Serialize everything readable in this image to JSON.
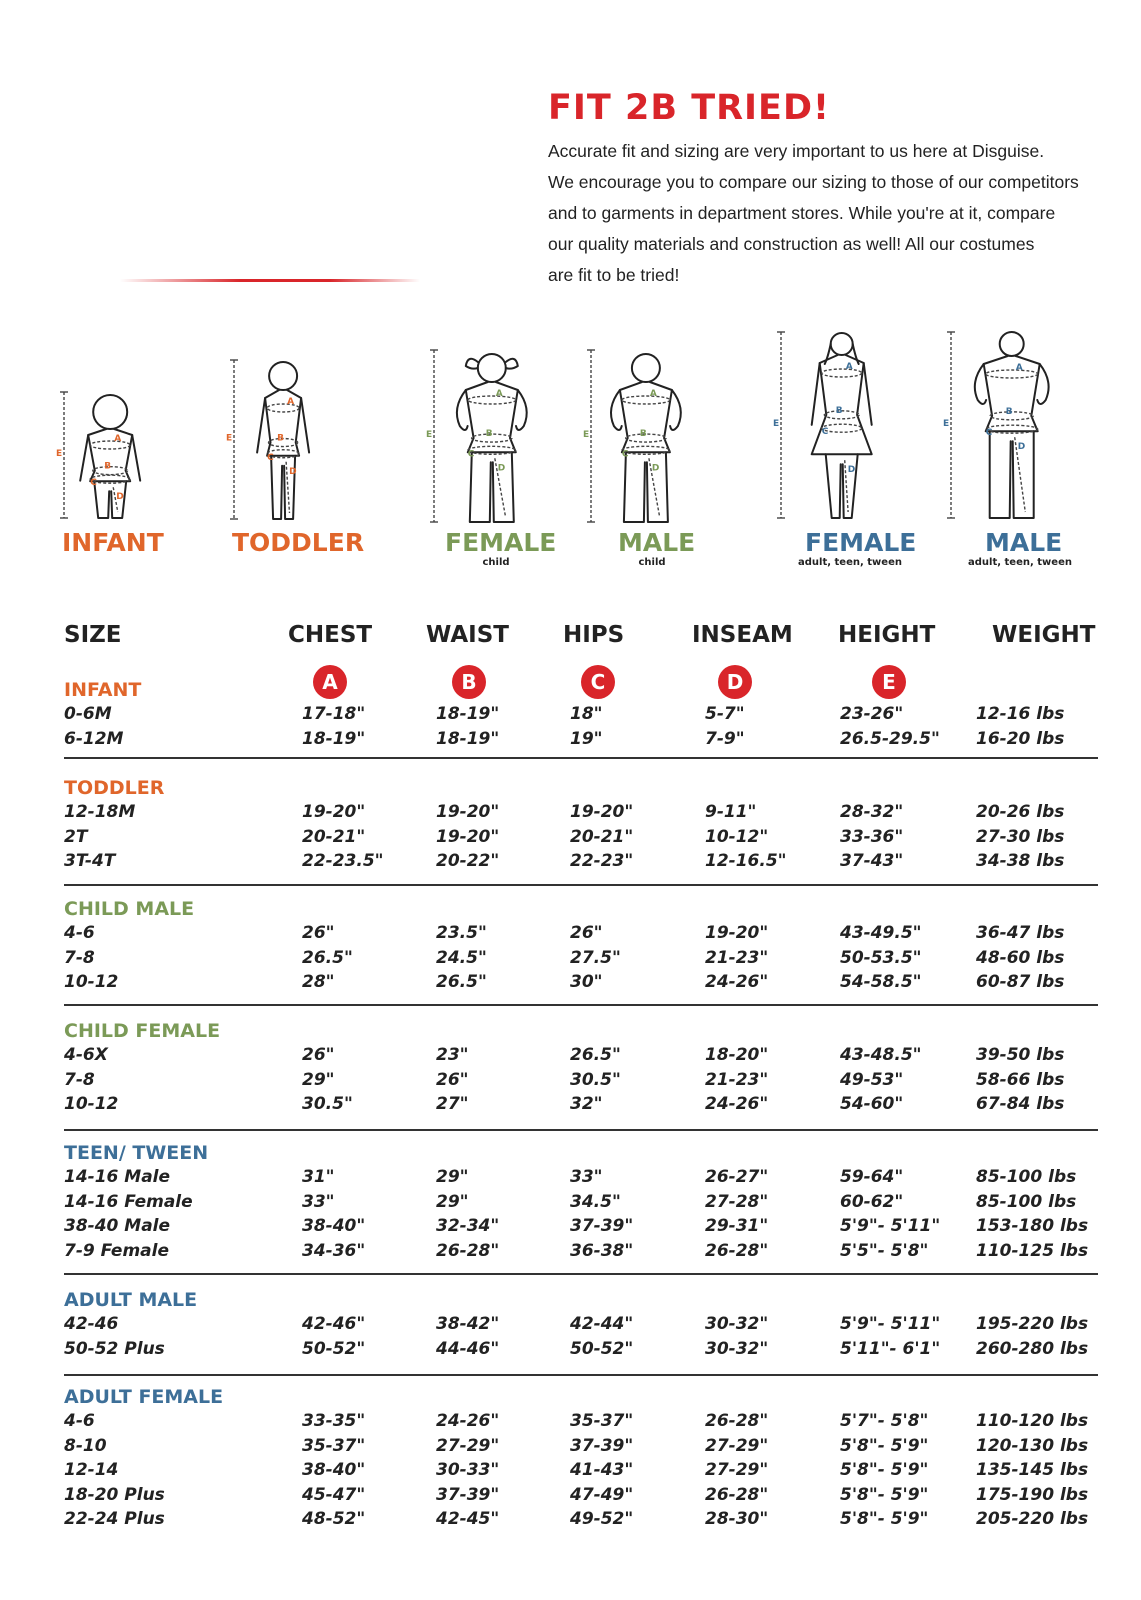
{
  "header": {
    "headline": "FIT 2B TRIED!",
    "intro_lines": [
      "Accurate fit and sizing are very important to us here at Disguise.",
      "We encourage you to compare our sizing to those of our competitors",
      "and to garments in department stores. While you're at it, compare",
      "our quality materials and construction as well! All our costumes",
      "are fit to be tried!"
    ]
  },
  "colors": {
    "headline_red": "#d9252a",
    "orange": "#e0662b",
    "green": "#7b9a57",
    "blue": "#3d6f98",
    "rule": "#333333"
  },
  "figures": [
    {
      "label": "INFANT",
      "sublabel": "",
      "color": "orange"
    },
    {
      "label": "TODDLER",
      "sublabel": "",
      "color": "orange"
    },
    {
      "label": "FEMALE",
      "sublabel": "child",
      "color": "green"
    },
    {
      "label": "MALE",
      "sublabel": "child",
      "color": "green"
    },
    {
      "label": "FEMALE",
      "sublabel": "adult, teen, tween",
      "color": "blue"
    },
    {
      "label": "MALE",
      "sublabel": "adult, teen, tween",
      "color": "blue"
    }
  ],
  "figure_markers": [
    "A",
    "B",
    "C",
    "D",
    "E"
  ],
  "table": {
    "columns": [
      "SIZE",
      "CHEST",
      "WAIST",
      "HIPS",
      "INSEAM",
      "HEIGHT",
      "WEIGHT"
    ],
    "badges": [
      "A",
      "B",
      "C",
      "D",
      "E"
    ],
    "sections": [
      {
        "title": "INFANT",
        "color": "orange",
        "rows": [
          [
            "0-6M",
            "17-18\"",
            "18-19\"",
            "18\"",
            "5-7\"",
            "23-26\"",
            "12-16 lbs"
          ],
          [
            "6-12M",
            "18-19\"",
            "18-19\"",
            "19\"",
            "7-9\"",
            "26.5-29.5\"",
            "16-20 lbs"
          ]
        ]
      },
      {
        "title": "TODDLER",
        "color": "orange",
        "rows": [
          [
            "12-18M",
            "19-20\"",
            "19-20\"",
            "19-20\"",
            "9-11\"",
            "28-32\"",
            "20-26 lbs"
          ],
          [
            "2T",
            "20-21\"",
            "19-20\"",
            "20-21\"",
            "10-12\"",
            "33-36\"",
            "27-30 lbs"
          ],
          [
            "3T-4T",
            "22-23.5\"",
            "20-22\"",
            "22-23\"",
            "12-16.5\"",
            "37-43\"",
            "34-38 lbs"
          ]
        ]
      },
      {
        "title": "CHILD MALE",
        "color": "green",
        "rows": [
          [
            "4-6",
            "26\"",
            "23.5\"",
            "26\"",
            "19-20\"",
            "43-49.5\"",
            "36-47 lbs"
          ],
          [
            "7-8",
            "26.5\"",
            "24.5\"",
            "27.5\"",
            "21-23\"",
            "50-53.5\"",
            "48-60 lbs"
          ],
          [
            "10-12",
            "28\"",
            "26.5\"",
            "30\"",
            "24-26\"",
            "54-58.5\"",
            "60-87 lbs"
          ]
        ]
      },
      {
        "title": "CHILD FEMALE",
        "color": "green",
        "rows": [
          [
            "4-6X",
            "26\"",
            "23\"",
            "26.5\"",
            "18-20\"",
            "43-48.5\"",
            "39-50 lbs"
          ],
          [
            "7-8",
            "29\"",
            "26\"",
            "30.5\"",
            "21-23\"",
            "49-53\"",
            "58-66 lbs"
          ],
          [
            "10-12",
            "30.5\"",
            "27\"",
            "32\"",
            "24-26\"",
            "54-60\"",
            "67-84 lbs"
          ]
        ]
      },
      {
        "title": "TEEN/ TWEEN",
        "color": "blue",
        "rows": [
          [
            "14-16 Male",
            "31\"",
            "29\"",
            "33\"",
            "26-27\"",
            "59-64\"",
            "85-100 lbs"
          ],
          [
            "14-16 Female",
            "33\"",
            "29\"",
            "34.5\"",
            "27-28\"",
            "60-62\"",
            "85-100 lbs"
          ],
          [
            "38-40 Male",
            "38-40\"",
            "32-34\"",
            "37-39\"",
            "29-31\"",
            "5'9\"- 5'11\"",
            "153-180 lbs"
          ],
          [
            "7-9 Female",
            "34-36\"",
            "26-28\"",
            "36-38\"",
            "26-28\"",
            "5'5\"- 5'8\"",
            "110-125 lbs"
          ]
        ]
      },
      {
        "title": "ADULT MALE",
        "color": "blue",
        "rows": [
          [
            "42-46",
            "42-46\"",
            "38-42\"",
            "42-44\"",
            "30-32\"",
            "5'9\"- 5'11\"",
            "195-220 lbs"
          ],
          [
            "50-52 Plus",
            "50-52\"",
            "44-46\"",
            "50-52\"",
            "30-32\"",
            "5'11\"- 6'1\"",
            "260-280 lbs"
          ]
        ]
      },
      {
        "title": "ADULT FEMALE",
        "color": "blue",
        "rows": [
          [
            "4-6",
            "33-35\"",
            "24-26\"",
            "35-37\"",
            "26-28\"",
            "5'7\"- 5'8\"",
            "110-120 lbs"
          ],
          [
            "8-10",
            "35-37\"",
            "27-29\"",
            "37-39\"",
            "27-29\"",
            "5'8\"- 5'9\"",
            "120-130 lbs"
          ],
          [
            "12-14",
            "38-40\"",
            "30-33\"",
            "41-43\"",
            "27-29\"",
            "5'8\"- 5'9\"",
            "135-145 lbs"
          ],
          [
            "18-20 Plus",
            "45-47\"",
            "37-39\"",
            "47-49\"",
            "26-28\"",
            "5'8\"- 5'9\"",
            "175-190 lbs"
          ],
          [
            "22-24 Plus",
            "48-52\"",
            "42-45\"",
            "49-52\"",
            "28-30\"",
            "5'8\"- 5'9\"",
            "205-220 lbs"
          ]
        ]
      }
    ]
  }
}
